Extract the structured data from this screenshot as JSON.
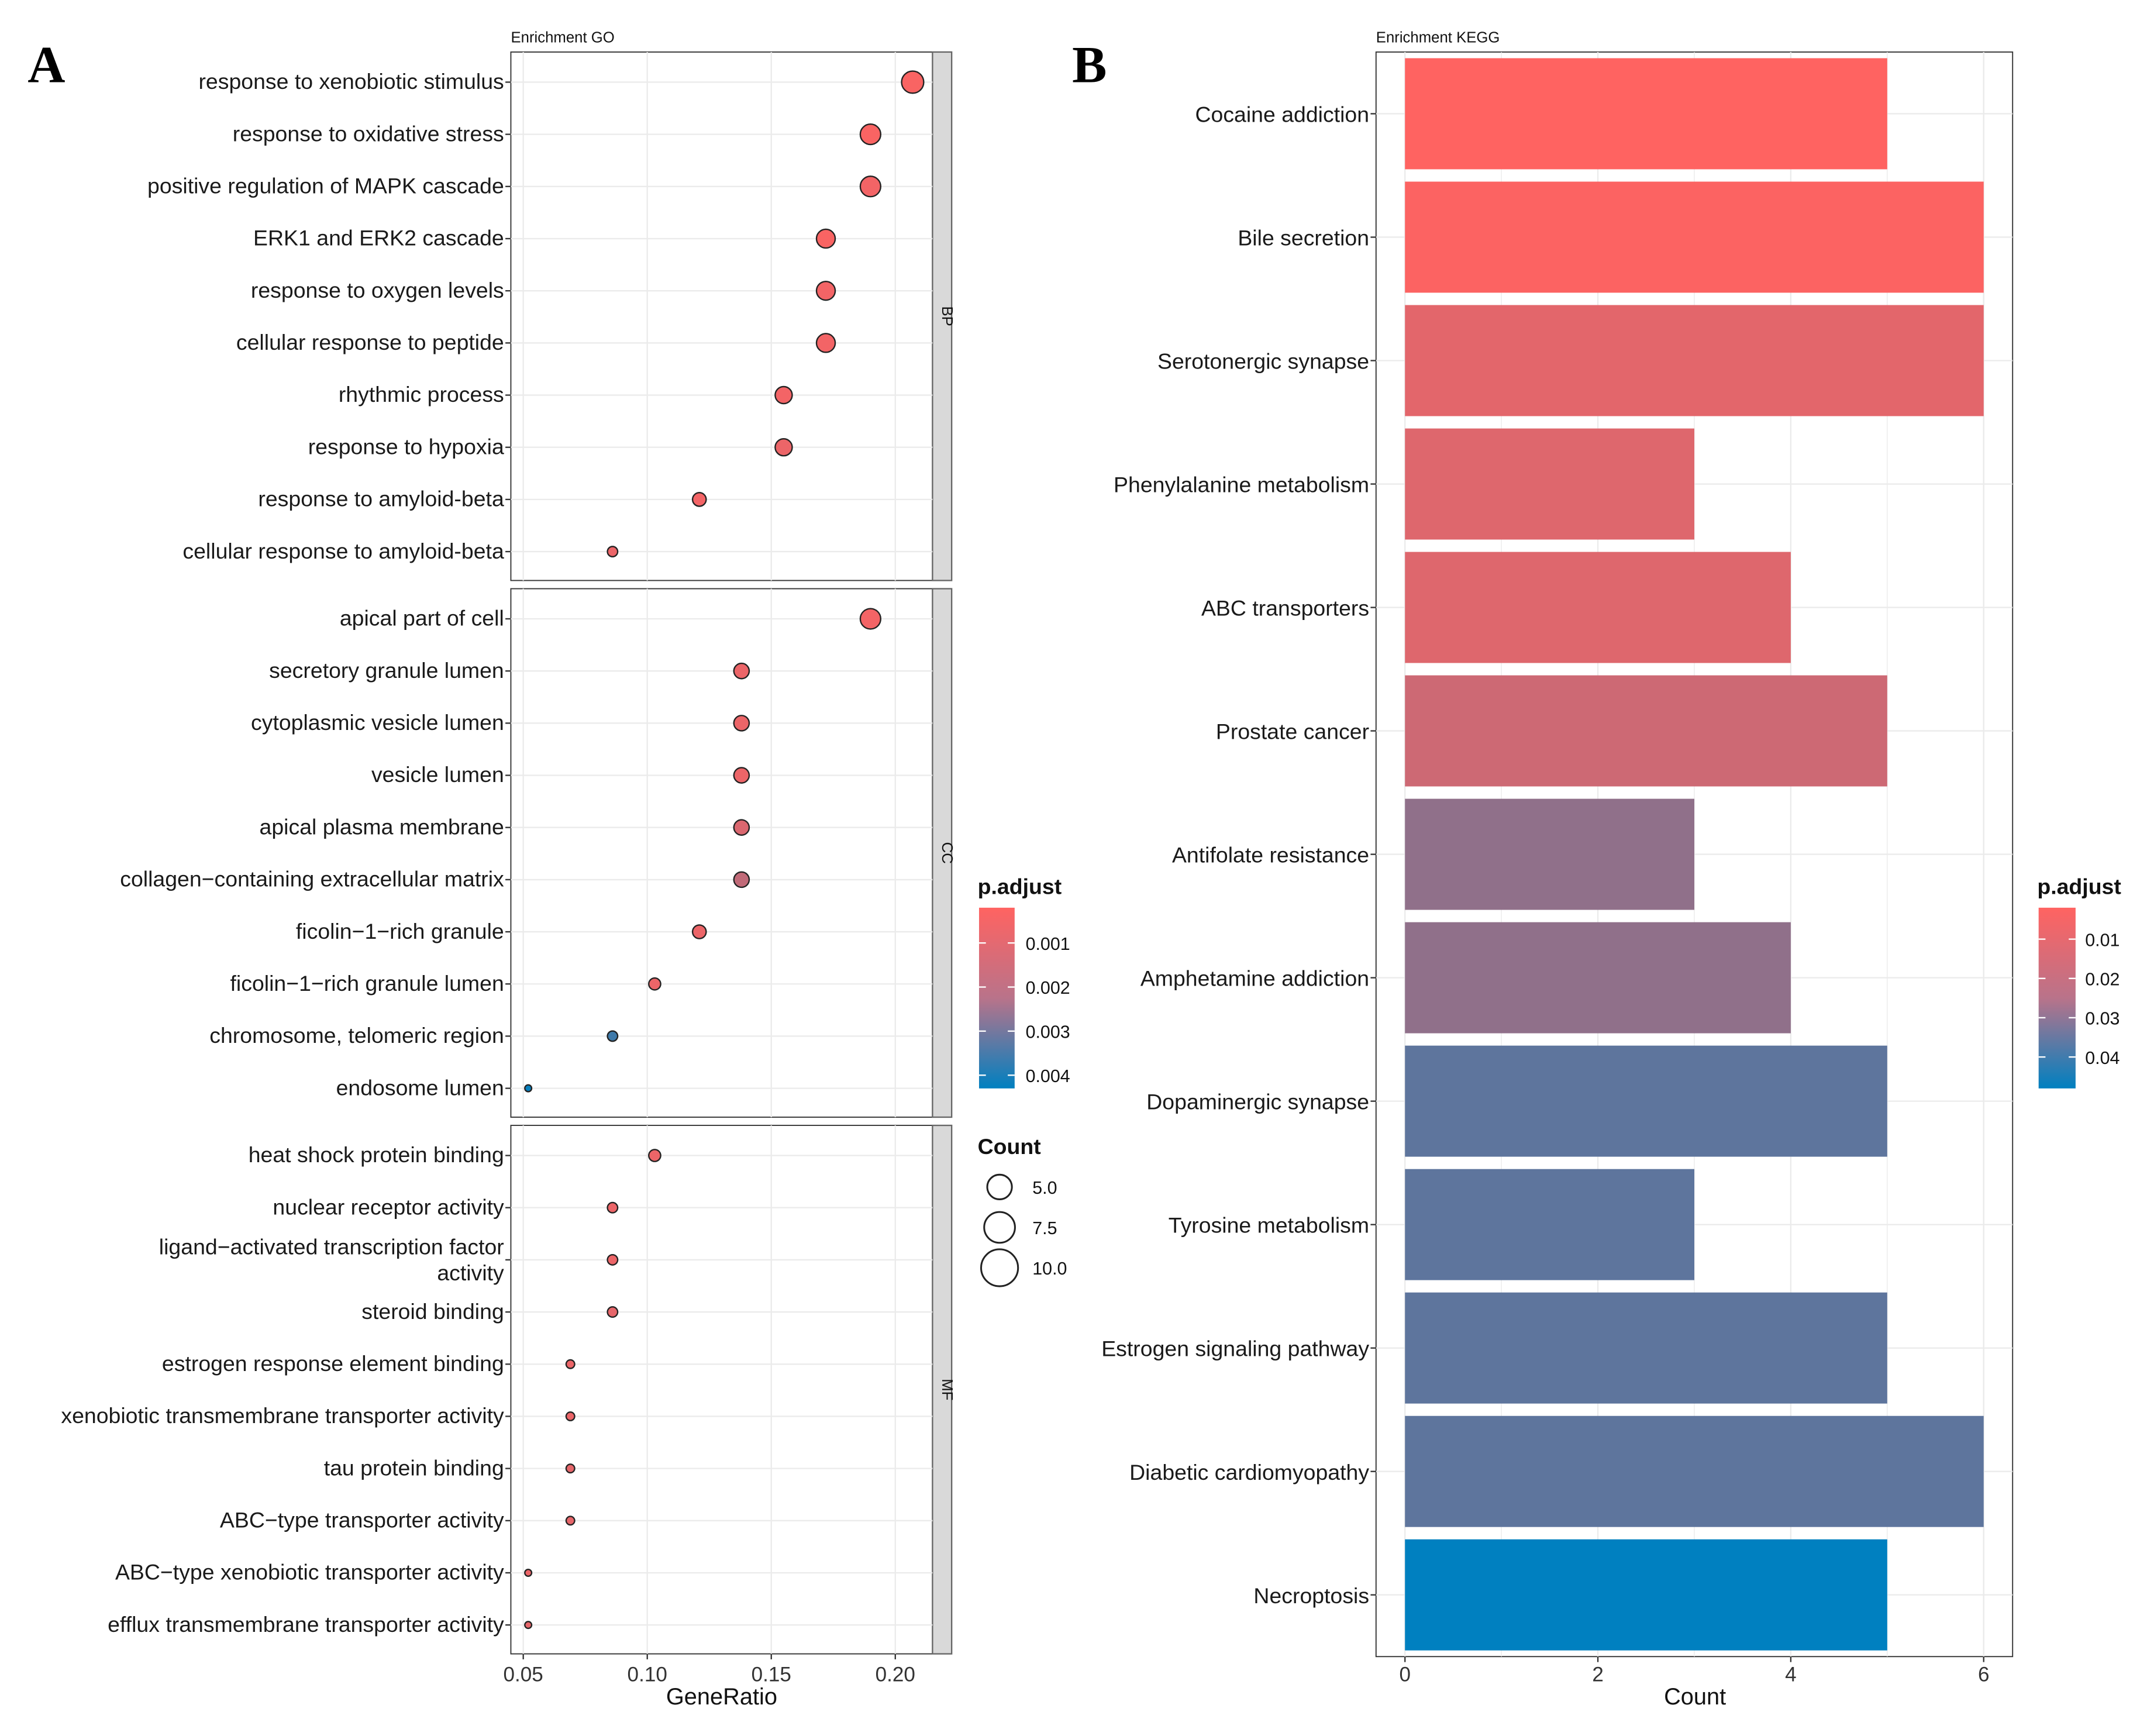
{
  "colors": {
    "low_p": "#FF6361",
    "high_p": "#0080C0",
    "strip": "#D9D9D9",
    "grid": "#EBEBEB"
  },
  "chart_data": [
    {
      "type": "scatter",
      "panel_label": "A",
      "title": "Enrichment GO",
      "xlabel": "GeneRatio",
      "xlim": [
        0.045,
        0.215
      ],
      "xticks": [
        "0.05",
        "0.10",
        "0.15",
        "0.20"
      ],
      "xtick_values": [
        0.05,
        0.1,
        0.15,
        0.2
      ],
      "grid": true,
      "facets": [
        {
          "name": "BP",
          "terms": [
            {
              "label": "response to xenobiotic stimulus",
              "gene_ratio": 0.207,
              "count": 12,
              "p_adjust": 0.0003
            },
            {
              "label": "response to oxidative stress",
              "gene_ratio": 0.19,
              "count": 11,
              "p_adjust": 0.0003
            },
            {
              "label": "positive regulation of MAPK cascade",
              "gene_ratio": 0.19,
              "count": 11,
              "p_adjust": 0.0004
            },
            {
              "label": "ERK1 and ERK2 cascade",
              "gene_ratio": 0.172,
              "count": 10,
              "p_adjust": 0.0003
            },
            {
              "label": "response to oxygen levels",
              "gene_ratio": 0.172,
              "count": 10,
              "p_adjust": 0.0004
            },
            {
              "label": "cellular response to peptide",
              "gene_ratio": 0.172,
              "count": 10,
              "p_adjust": 0.0004
            },
            {
              "label": "rhythmic process",
              "gene_ratio": 0.155,
              "count": 9,
              "p_adjust": 0.0004
            },
            {
              "label": "response to hypoxia",
              "gene_ratio": 0.155,
              "count": 9,
              "p_adjust": 0.0005
            },
            {
              "label": "response to amyloid-beta",
              "gene_ratio": 0.121,
              "count": 7,
              "p_adjust": 0.0004
            },
            {
              "label": "cellular response to amyloid-beta",
              "gene_ratio": 0.086,
              "count": 5,
              "p_adjust": 0.0005
            }
          ]
        },
        {
          "name": "CC",
          "terms": [
            {
              "label": "apical part of cell",
              "gene_ratio": 0.19,
              "count": 11,
              "p_adjust": 0.0004
            },
            {
              "label": "secretory granule lumen",
              "gene_ratio": 0.138,
              "count": 8,
              "p_adjust": 0.0005
            },
            {
              "label": "cytoplasmic vesicle lumen",
              "gene_ratio": 0.138,
              "count": 8,
              "p_adjust": 0.0005
            },
            {
              "label": "vesicle lumen",
              "gene_ratio": 0.138,
              "count": 8,
              "p_adjust": 0.0005
            },
            {
              "label": "apical plasma membrane",
              "gene_ratio": 0.138,
              "count": 8,
              "p_adjust": 0.0008
            },
            {
              "label": "collagen−containing extracellular matrix",
              "gene_ratio": 0.138,
              "count": 8,
              "p_adjust": 0.0012
            },
            {
              "label": "ficolin−1−rich granule",
              "gene_ratio": 0.121,
              "count": 7,
              "p_adjust": 0.0005
            },
            {
              "label": "ficolin−1−rich granule lumen",
              "gene_ratio": 0.103,
              "count": 6,
              "p_adjust": 0.0005
            },
            {
              "label": "chromosome, telomeric region",
              "gene_ratio": 0.086,
              "count": 5,
              "p_adjust": 0.0033
            },
            {
              "label": "endosome lumen",
              "gene_ratio": 0.052,
              "count": 3,
              "p_adjust": 0.0042
            }
          ]
        },
        {
          "name": "MF",
          "terms": [
            {
              "label": "heat shock protein binding",
              "gene_ratio": 0.103,
              "count": 6,
              "p_adjust": 0.0005
            },
            {
              "label": "nuclear receptor activity",
              "gene_ratio": 0.086,
              "count": 5,
              "p_adjust": 0.0005
            },
            {
              "label": "ligand−activated transcription factor activity",
              "label_lines": [
                "ligand−activated transcription factor",
                "activity"
              ],
              "gene_ratio": 0.086,
              "count": 5,
              "p_adjust": 0.0005
            },
            {
              "label": "steroid binding",
              "gene_ratio": 0.086,
              "count": 5,
              "p_adjust": 0.0006
            },
            {
              "label": "estrogen response element binding",
              "gene_ratio": 0.069,
              "count": 4,
              "p_adjust": 0.0005
            },
            {
              "label": "xenobiotic transmembrane transporter activity",
              "gene_ratio": 0.069,
              "count": 4,
              "p_adjust": 0.0005
            },
            {
              "label": "tau protein binding",
              "gene_ratio": 0.069,
              "count": 4,
              "p_adjust": 0.0006
            },
            {
              "label": "ABC−type transporter activity",
              "gene_ratio": 0.069,
              "count": 4,
              "p_adjust": 0.0006
            },
            {
              "label": "ABC−type xenobiotic transporter activity",
              "gene_ratio": 0.052,
              "count": 3,
              "p_adjust": 0.0005
            },
            {
              "label": "efflux transmembrane transporter activity",
              "gene_ratio": 0.052,
              "count": 3,
              "p_adjust": 0.0006
            }
          ]
        }
      ],
      "legend_color": {
        "title": "p.adjust",
        "ticks": [
          "0.001",
          "0.002",
          "0.003",
          "0.004"
        ],
        "tick_values": [
          0.001,
          0.002,
          0.003,
          0.004
        ],
        "range": [
          0.0002,
          0.0043
        ]
      },
      "legend_size": {
        "title": "Count",
        "ticks": [
          "5.0",
          "7.5",
          "10.0"
        ],
        "tick_values": [
          5,
          7.5,
          10
        ]
      }
    },
    {
      "type": "bar",
      "orientation": "horizontal",
      "panel_label": "B",
      "title": "Enrichment KEGG",
      "xlabel": "Count",
      "xlim": [
        -0.3,
        6.3
      ],
      "xticks": [
        "0",
        "2",
        "4",
        "6"
      ],
      "xtick_values": [
        0,
        2,
        4,
        6
      ],
      "grid": true,
      "categories": [
        "Cocaine addiction",
        "Bile secretion",
        "Serotonergic synapse",
        "Phenylalanine metabolism",
        "ABC transporters",
        "Prostate cancer",
        "Antifolate resistance",
        "Amphetamine addiction",
        "Dopaminergic synapse",
        "Tyrosine metabolism",
        "Estrogen signaling pathway",
        "Diabetic cardiomyopathy",
        "Necroptosis"
      ],
      "values": [
        5,
        6,
        6,
        3,
        4,
        5,
        3,
        4,
        5,
        3,
        5,
        6,
        5
      ],
      "p_adjust": [
        0.002,
        0.0025,
        0.007,
        0.008,
        0.008,
        0.011,
        0.022,
        0.022,
        0.031,
        0.031,
        0.031,
        0.031,
        0.048
      ],
      "legend_color": {
        "title": "p.adjust",
        "ticks": [
          "0.01",
          "0.02",
          "0.03",
          "0.04"
        ],
        "tick_values": [
          0.01,
          0.02,
          0.03,
          0.04
        ],
        "range": [
          0.002,
          0.048
        ]
      }
    }
  ]
}
